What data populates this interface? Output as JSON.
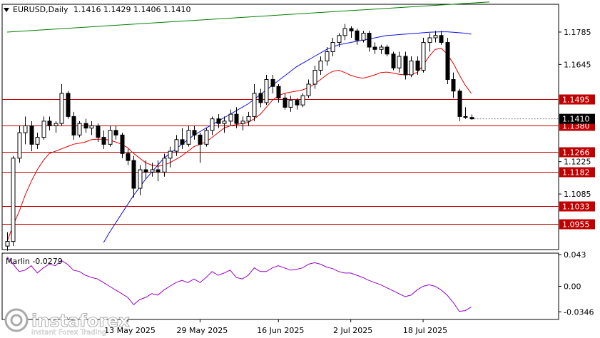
{
  "header": {
    "symbol": "EURUSD,Daily",
    "ohlc": "1.1416 1.1429 1.1406 1.1410"
  },
  "colors": {
    "background": "#ffffff",
    "sma_fast": "#e00000",
    "sma_slow": "#1010e0",
    "trendline": "#008000",
    "level": "#c00000",
    "marlin": "#9400c8",
    "price_tag": "#000000"
  },
  "indicator": {
    "label": "Marlin -0.0279",
    "ticks": [
      "0.043",
      "0.00",
      "-0.0346"
    ]
  },
  "watermark": {
    "brand": "instaforex",
    "tagline": "Instant Forex Trading"
  },
  "chart_data": {
    "type": "candlestick",
    "symbol": "EURUSD",
    "timeframe": "Daily",
    "price_axis": {
      "ylim": [
        1.0845,
        1.1905
      ],
      "ticks": [
        1.1785,
        1.1645,
        1.1225,
        1.1085
      ]
    },
    "x_ticks": [
      {
        "label": "13 May 2025",
        "index": 20
      },
      {
        "label": "29 May 2025",
        "index": 32
      },
      {
        "label": "16 Jun 2025",
        "index": 45
      },
      {
        "label": "2 Jul 2025",
        "index": 57
      },
      {
        "label": "18 Jul 2025",
        "index": 69
      }
    ],
    "levels": [
      {
        "label": "1.1495",
        "value": 1.1495
      },
      {
        "label": "1.1380",
        "value": 1.138
      },
      {
        "label": "1.1266",
        "value": 1.1266
      },
      {
        "label": "1.1182",
        "value": 1.1182
      },
      {
        "label": "1.1033",
        "value": 1.1033
      },
      {
        "label": "1.0955",
        "value": 1.0955
      }
    ],
    "current_price": {
      "label": "1.1410",
      "value": 1.141
    },
    "trendline": {
      "from": [
        0,
        1.1785
      ],
      "to": [
        80,
        1.1915
      ]
    },
    "candles": [
      [
        1.086,
        1.092,
        1.084,
        1.088
      ],
      [
        1.088,
        1.125,
        1.086,
        1.124
      ],
      [
        1.124,
        1.138,
        1.122,
        1.135
      ],
      [
        1.135,
        1.142,
        1.13,
        1.138
      ],
      [
        1.138,
        1.14,
        1.127,
        1.13
      ],
      [
        1.13,
        1.135,
        1.128,
        1.133
      ],
      [
        1.133,
        1.142,
        1.132,
        1.14
      ],
      [
        1.14,
        1.142,
        1.136,
        1.138
      ],
      [
        1.138,
        1.14,
        1.135,
        1.139
      ],
      [
        1.139,
        1.156,
        1.138,
        1.152
      ],
      [
        1.152,
        1.153,
        1.141,
        1.142
      ],
      [
        1.142,
        1.144,
        1.132,
        1.134
      ],
      [
        1.134,
        1.14,
        1.133,
        1.139
      ],
      [
        1.139,
        1.141,
        1.135,
        1.137
      ],
      [
        1.137,
        1.14,
        1.134,
        1.138
      ],
      [
        1.138,
        1.139,
        1.131,
        1.133
      ],
      [
        1.133,
        1.136,
        1.128,
        1.13
      ],
      [
        1.13,
        1.138,
        1.129,
        1.136
      ],
      [
        1.136,
        1.138,
        1.132,
        1.134
      ],
      [
        1.134,
        1.135,
        1.124,
        1.126
      ],
      [
        1.126,
        1.128,
        1.121,
        1.123
      ],
      [
        1.123,
        1.125,
        1.107,
        1.111
      ],
      [
        1.111,
        1.121,
        1.108,
        1.119
      ],
      [
        1.119,
        1.123,
        1.115,
        1.118
      ],
      [
        1.118,
        1.122,
        1.116,
        1.119
      ],
      [
        1.119,
        1.123,
        1.114,
        1.118
      ],
      [
        1.118,
        1.126,
        1.116,
        1.124
      ],
      [
        1.124,
        1.129,
        1.12,
        1.127
      ],
      [
        1.127,
        1.134,
        1.125,
        1.132
      ],
      [
        1.132,
        1.137,
        1.128,
        1.13
      ],
      [
        1.13,
        1.138,
        1.129,
        1.136
      ],
      [
        1.136,
        1.138,
        1.132,
        1.134
      ],
      [
        1.134,
        1.135,
        1.122,
        1.13
      ],
      [
        1.13,
        1.137,
        1.129,
        1.136
      ],
      [
        1.136,
        1.142,
        1.134,
        1.141
      ],
      [
        1.141,
        1.143,
        1.137,
        1.139
      ],
      [
        1.139,
        1.142,
        1.135,
        1.14
      ],
      [
        1.14,
        1.145,
        1.138,
        1.143
      ],
      [
        1.143,
        1.146,
        1.137,
        1.139
      ],
      [
        1.139,
        1.142,
        1.136,
        1.14
      ],
      [
        1.14,
        1.144,
        1.138,
        1.142
      ],
      [
        1.142,
        1.156,
        1.14,
        1.152
      ],
      [
        1.152,
        1.154,
        1.146,
        1.148
      ],
      [
        1.148,
        1.16,
        1.147,
        1.158
      ],
      [
        1.158,
        1.16,
        1.152,
        1.155
      ],
      [
        1.155,
        1.156,
        1.148,
        1.15
      ],
      [
        1.15,
        1.152,
        1.145,
        1.146
      ],
      [
        1.146,
        1.151,
        1.144,
        1.149
      ],
      [
        1.149,
        1.15,
        1.145,
        1.147
      ],
      [
        1.147,
        1.152,
        1.146,
        1.151
      ],
      [
        1.151,
        1.158,
        1.15,
        1.156
      ],
      [
        1.156,
        1.164,
        1.154,
        1.162
      ],
      [
        1.162,
        1.168,
        1.16,
        1.166
      ],
      [
        1.166,
        1.172,
        1.164,
        1.17
      ],
      [
        1.17,
        1.176,
        1.168,
        1.174
      ],
      [
        1.174,
        1.178,
        1.172,
        1.177
      ],
      [
        1.177,
        1.182,
        1.175,
        1.18
      ],
      [
        1.18,
        1.181,
        1.176,
        1.179
      ],
      [
        1.179,
        1.18,
        1.173,
        1.175
      ],
      [
        1.175,
        1.179,
        1.174,
        1.178
      ],
      [
        1.178,
        1.179,
        1.17,
        1.172
      ],
      [
        1.172,
        1.174,
        1.169,
        1.171
      ],
      [
        1.171,
        1.173,
        1.169,
        1.172
      ],
      [
        1.172,
        1.173,
        1.168,
        1.169
      ],
      [
        1.169,
        1.17,
        1.162,
        1.163
      ],
      [
        1.163,
        1.17,
        1.161,
        1.168
      ],
      [
        1.168,
        1.17,
        1.158,
        1.16
      ],
      [
        1.16,
        1.168,
        1.159,
        1.166
      ],
      [
        1.166,
        1.168,
        1.16,
        1.162
      ],
      [
        1.162,
        1.176,
        1.161,
        1.174
      ],
      [
        1.174,
        1.178,
        1.17,
        1.176
      ],
      [
        1.176,
        1.179,
        1.174,
        1.177
      ],
      [
        1.177,
        1.179,
        1.173,
        1.174
      ],
      [
        1.174,
        1.176,
        1.156,
        1.158
      ],
      [
        1.158,
        1.161,
        1.15,
        1.153
      ],
      [
        1.153,
        1.154,
        1.14,
        1.142
      ],
      [
        1.142,
        1.146,
        1.141,
        1.1416
      ],
      [
        1.1416,
        1.1429,
        1.1406,
        1.141
      ]
    ],
    "sma_fast": [
      1.088,
      1.095,
      1.101,
      1.108,
      1.114,
      1.119,
      1.123,
      1.126,
      1.127,
      1.128,
      1.129,
      1.13,
      1.1305,
      1.131,
      1.132,
      1.1322,
      1.1322,
      1.1318,
      1.131,
      1.13,
      1.1285,
      1.126,
      1.124,
      1.122,
      1.121,
      1.1205,
      1.121,
      1.122,
      1.1235,
      1.125,
      1.127,
      1.129,
      1.13,
      1.131,
      1.133,
      1.135,
      1.137,
      1.138,
      1.1385,
      1.139,
      1.1395,
      1.141,
      1.143,
      1.146,
      1.149,
      1.151,
      1.152,
      1.1525,
      1.153,
      1.1535,
      1.1545,
      1.156,
      1.158,
      1.16,
      1.1615,
      1.162,
      1.161,
      1.1598,
      1.159,
      1.1585,
      1.1592,
      1.16,
      1.161,
      1.1612,
      1.1608,
      1.1602,
      1.16,
      1.1602,
      1.161,
      1.164,
      1.168,
      1.171,
      1.1715,
      1.169,
      1.165,
      1.16,
      1.1555,
      1.152
    ],
    "sma_slow": [
      null,
      null,
      null,
      null,
      null,
      null,
      null,
      null,
      null,
      null,
      null,
      null,
      null,
      null,
      null,
      null,
      1.0875,
      1.092,
      1.096,
      1.1,
      1.104,
      1.108,
      1.1115,
      1.115,
      1.118,
      1.121,
      1.124,
      1.126,
      1.128,
      1.13,
      1.132,
      1.134,
      1.1355,
      1.137,
      1.1385,
      1.14,
      1.1415,
      1.143,
      1.1445,
      1.146,
      1.1475,
      1.1495,
      1.1515,
      1.1535,
      1.1555,
      1.1575,
      1.1595,
      1.1615,
      1.1635,
      1.165,
      1.1665,
      1.168,
      1.1695,
      1.171,
      1.172,
      1.173,
      1.1735,
      1.174,
      1.1745,
      1.175,
      1.1755,
      1.176,
      1.1765,
      1.177,
      1.1772,
      1.1774,
      1.1776,
      1.1778,
      1.178,
      1.1782,
      1.1784,
      1.1785,
      1.1786,
      1.1786,
      1.1784,
      1.1782,
      1.178,
      1.1776
    ],
    "marlin": {
      "ylim": [
        -0.045,
        0.045
      ],
      "values": [
        0.04,
        0.03,
        0.02,
        0.022,
        0.028,
        0.018,
        0.025,
        0.03,
        0.028,
        0.035,
        0.03,
        0.022,
        0.02,
        0.015,
        0.012,
        0.01,
        0.005,
        0.0,
        -0.005,
        -0.01,
        -0.015,
        -0.025,
        -0.018,
        -0.015,
        -0.01,
        -0.012,
        -0.005,
        0.0,
        0.005,
        0.008,
        0.005,
        0.01,
        0.005,
        0.012,
        0.02,
        0.015,
        0.018,
        0.022,
        0.012,
        0.01,
        0.015,
        0.025,
        0.02,
        0.02,
        0.025,
        0.028,
        0.025,
        0.022,
        0.023,
        0.025,
        0.03,
        0.032,
        0.03,
        0.026,
        0.024,
        0.02,
        0.018,
        0.018,
        0.015,
        0.012,
        0.008,
        0.005,
        0.002,
        -0.002,
        -0.006,
        -0.01,
        -0.014,
        -0.012,
        -0.005,
        0.0,
        0.002,
        0.0,
        -0.005,
        -0.012,
        -0.022,
        -0.034,
        -0.033,
        -0.0279
      ]
    }
  }
}
